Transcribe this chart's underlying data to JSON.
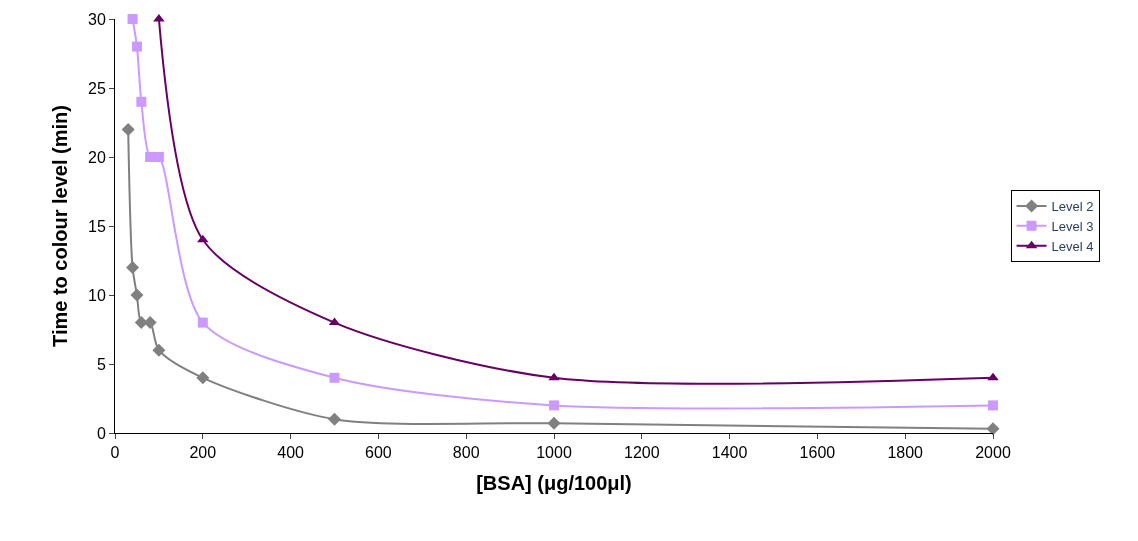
{
  "chart_data": {
    "type": "line",
    "xlabel": "[BSA] (μg/100μl)",
    "ylabel": "Time to colour level (min)",
    "xlim": [
      0,
      2000
    ],
    "xticks": [
      0,
      200,
      400,
      600,
      800,
      1000,
      1200,
      1400,
      1600,
      1800,
      2000
    ],
    "ylim": [
      0,
      30
    ],
    "yticks": [
      0,
      5,
      10,
      15,
      20,
      25,
      30
    ],
    "legend": "right",
    "series": [
      {
        "name": "Level 2",
        "color": "#808080",
        "marker": "diamond",
        "x": [
          30,
          40,
          50,
          60,
          80,
          100,
          200,
          500,
          1000,
          2000
        ],
        "values": [
          22,
          12,
          10,
          8,
          8,
          6,
          4,
          1,
          0.7,
          0.3
        ]
      },
      {
        "name": "Level 3",
        "color": "#cc99ff",
        "marker": "square",
        "x": [
          40,
          50,
          60,
          80,
          100,
          200,
          500,
          1000,
          2000
        ],
        "values": [
          30,
          28,
          24,
          20,
          20,
          8,
          4,
          2,
          2
        ]
      },
      {
        "name": "Level 4",
        "color": "#660066",
        "marker": "triangle",
        "x": [
          100,
          200,
          500,
          1000,
          2000
        ],
        "values": [
          30,
          14,
          8,
          4,
          4
        ]
      }
    ]
  }
}
